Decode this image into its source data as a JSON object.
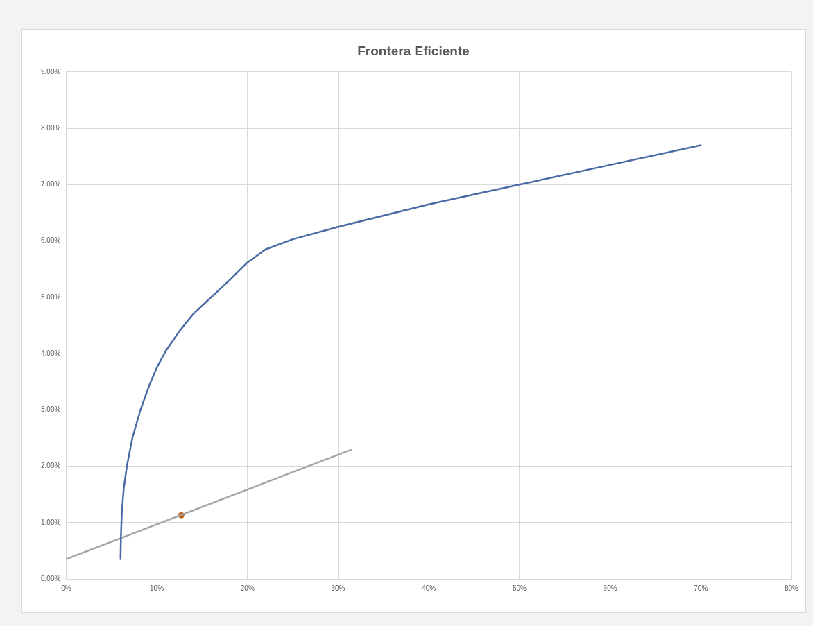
{
  "chart_data": {
    "type": "line",
    "title": "Frontera Eficiente",
    "grid": true,
    "legend": false,
    "xlim": [
      0,
      80
    ],
    "xticks": [
      {
        "value": 0,
        "label": "0%"
      },
      {
        "value": 10,
        "label": "10%"
      },
      {
        "value": 20,
        "label": "20%"
      },
      {
        "value": 30,
        "label": "30%"
      },
      {
        "value": 40,
        "label": "40%"
      },
      {
        "value": 50,
        "label": "50%"
      },
      {
        "value": 60,
        "label": "60%"
      },
      {
        "value": 70,
        "label": "70%"
      },
      {
        "value": 80,
        "label": "80%"
      }
    ],
    "ylim": [
      0,
      9
    ],
    "yticks": [
      {
        "value": 0,
        "label": "0.00%"
      },
      {
        "value": 1,
        "label": "1.00%"
      },
      {
        "value": 2,
        "label": "2.00%"
      },
      {
        "value": 3,
        "label": "3.00%"
      },
      {
        "value": 4,
        "label": "4.00%"
      },
      {
        "value": 5,
        "label": "5.00%"
      },
      {
        "value": 6,
        "label": "6.00%"
      },
      {
        "value": 7,
        "label": "7.00%"
      },
      {
        "value": 8,
        "label": "8.00%"
      },
      {
        "value": 9,
        "label": "9.00%"
      }
    ],
    "series": [
      {
        "type": "line",
        "color": "#4a6aa5",
        "marker": "none",
        "x": [
          6.0,
          6.05,
          6.15,
          6.35,
          6.7,
          7.3,
          8.2,
          9.2,
          10,
          11,
          12.5,
          14,
          16,
          18,
          20,
          22,
          25,
          30,
          40,
          50,
          60,
          70
        ],
        "values": [
          0.35,
          0.8,
          1.2,
          1.6,
          2.0,
          2.5,
          3.0,
          3.45,
          3.75,
          4.05,
          4.4,
          4.7,
          5.0,
          5.3,
          5.62,
          5.85,
          6.03,
          6.25,
          6.65,
          7.0,
          7.35,
          7.7
        ]
      },
      {
        "type": "line",
        "color": "#a6a6a6",
        "marker": "none",
        "x": [
          0,
          31.4
        ],
        "values": [
          0.35,
          2.29
        ]
      },
      {
        "type": "scatter",
        "color": "#c55a11",
        "marker": "circle",
        "x": [
          12.7
        ],
        "values": [
          1.13
        ]
      }
    ]
  }
}
